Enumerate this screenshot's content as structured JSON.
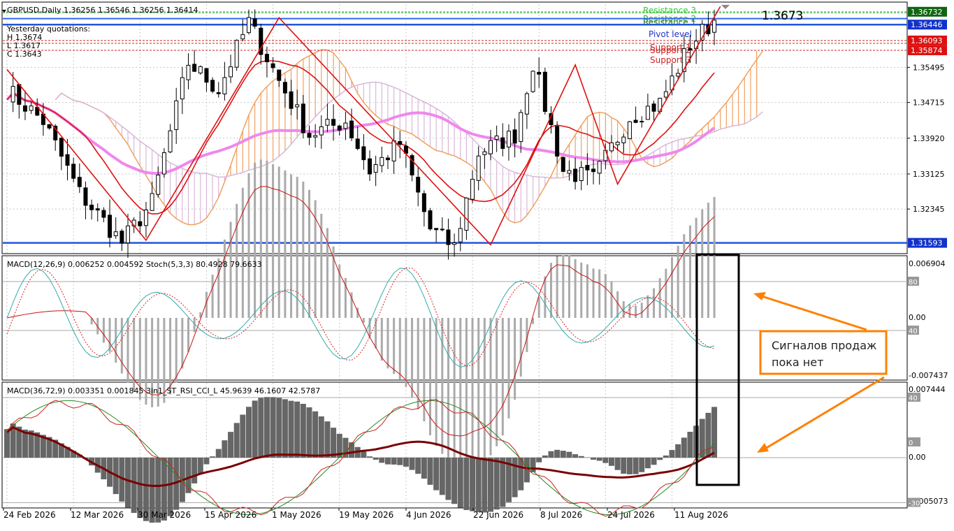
{
  "main": {
    "symbol_line": "GBPUSD,Daily  1.36256 1.36546 1.36256 1.36414",
    "yesterday": [
      "Yesterday quotations:",
      "H 1.3674",
      "L 1.3617",
      "C 1.3643"
    ],
    "big_label": "1.3673",
    "levels": [
      {
        "label": "Resistance 3",
        "value": 1.36732,
        "color": "#33cc33"
      },
      {
        "label": "Resistance 2",
        "value": 1.3671,
        "color": "#33aa33"
      },
      {
        "label": "Resistance 1",
        "value": 1.3658,
        "color": "#1f7a1f"
      },
      {
        "label": "Pivot level",
        "value": 1.36446,
        "color": "#2233cc"
      },
      {
        "label": "Support 1",
        "value": 1.36093,
        "color": "#cc2222"
      },
      {
        "label": "Support 2",
        "value": 1.3603,
        "color": "#cc2222"
      },
      {
        "label": "Support 3",
        "value": 1.35874,
        "color": "#cc2222"
      }
    ],
    "right_axis": [
      "1.35495",
      "1.34715",
      "1.33920",
      "1.33125",
      "1.32345"
    ],
    "price_tags": [
      {
        "text": "1.36732",
        "value": 1.36732,
        "bg": "#116611"
      },
      {
        "text": "1.36446",
        "value": 1.36446,
        "bg": "#1133cc"
      },
      {
        "text": "1.36093",
        "value": 1.36093,
        "bg": "#dd1111"
      },
      {
        "text": "1.35874",
        "value": 1.35874,
        "bg": "#dd1111"
      },
      {
        "text": "1.31593",
        "value": 1.31593,
        "bg": "#1133cc"
      }
    ]
  },
  "macd1": {
    "label": "MACD(12,26,9) 0.006252 0.004592  Stoch(5,3,3) 80.4928 79.6633",
    "axis": [
      "0.006904",
      "0.00",
      "-0.007437"
    ],
    "levels": [
      "80",
      "40"
    ]
  },
  "macd2": {
    "label": "MACD(36,72,9) 0.003351 0.001845  3in1_ST_RSI_CCI_L 45.9639 46.1607 42.5787",
    "axis": [
      "0.007444",
      "0.00",
      "-0.005073"
    ],
    "levels": [
      "40",
      "0",
      "-30"
    ]
  },
  "annotation": {
    "text_lines": [
      "Сигналов продаж",
      "пока нет"
    ]
  },
  "x_labels": [
    "24 Feb 2026",
    "12 Mar 2026",
    "30 Mar 2026",
    "15 Apr 2026",
    "1 May 2026",
    "19 May 2026",
    "4 Jun 2026",
    "22 Jun 2026",
    "8 Jul 2026",
    "24 Jul 2026",
    "11 Aug 2026"
  ],
  "colors": {
    "bull": "#ffffff",
    "bear": "#000000",
    "fast_ma": "#dd1111",
    "slow_ma": "#ee88ee",
    "cloud_a": "#f0a060",
    "cloud_b": "#d8b8d8",
    "arrow": "#ff8000"
  },
  "chart_data": [
    {
      "type": "candlestick",
      "title": "GBPUSD,Daily",
      "ylim": [
        1.314,
        1.369
      ],
      "anchors": [
        [
          0,
          1.35
        ],
        [
          6,
          1.343
        ],
        [
          12,
          1.327
        ],
        [
          19,
          1.316
        ],
        [
          24,
          1.325
        ],
        [
          30,
          1.356
        ],
        [
          35,
          1.35
        ],
        [
          40,
          1.365
        ],
        [
          45,
          1.352
        ],
        [
          50,
          1.34
        ],
        [
          56,
          1.343
        ],
        [
          60,
          1.332
        ],
        [
          65,
          1.338
        ],
        [
          70,
          1.319
        ],
        [
          74,
          1.315
        ],
        [
          78,
          1.336
        ],
        [
          84,
          1.34
        ],
        [
          87,
          1.356
        ],
        [
          92,
          1.332
        ],
        [
          97,
          1.33
        ],
        [
          103,
          1.344
        ],
        [
          108,
          1.347
        ],
        [
          113,
          1.36
        ],
        [
          117,
          1.3655
        ]
      ]
    },
    {
      "type": "histogram",
      "name": "MACD(12,26,9)",
      "ylim": [
        -0.007437,
        0.006904
      ]
    },
    {
      "type": "histogram",
      "name": "MACD(36,72,9)",
      "ylim": [
        -0.005073,
        0.007444
      ]
    }
  ]
}
